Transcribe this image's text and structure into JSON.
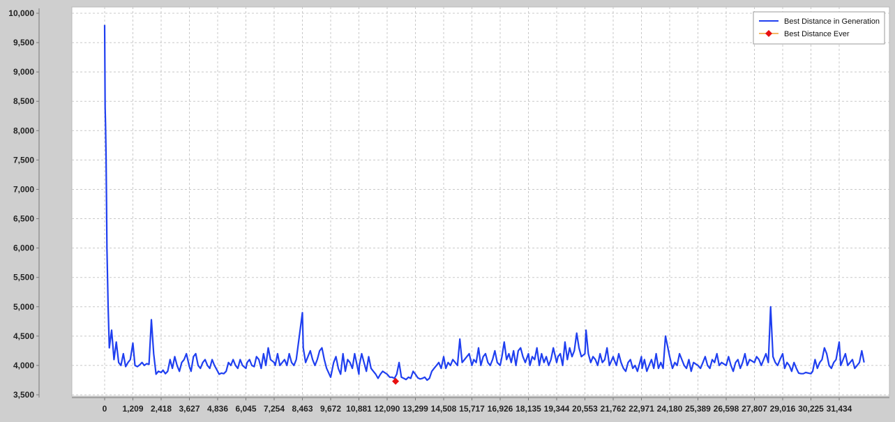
{
  "chart_data": {
    "type": "line",
    "title": "",
    "xlabel": "",
    "ylabel": "",
    "xlim": [
      -450,
      32800
    ],
    "ylim": [
      3500,
      10000
    ],
    "yticks": [
      3500,
      4000,
      4500,
      5000,
      5500,
      6000,
      6500,
      7000,
      7500,
      8000,
      8500,
      9000,
      9500,
      10000
    ],
    "ytick_labels": [
      "3,500",
      "4,000",
      "4,500",
      "5,000",
      "5,500",
      "6,000",
      "6,500",
      "7,000",
      "7,500",
      "8,000",
      "8,500",
      "9,000",
      "9,500",
      "10,000"
    ],
    "xticks": [
      0,
      1209,
      2418,
      3627,
      4836,
      6045,
      7254,
      8463,
      9672,
      10881,
      12090,
      13299,
      14508,
      15717,
      16926,
      18135,
      19344,
      20553,
      21762,
      22971,
      24180,
      25389,
      26598,
      27807,
      29016,
      30225,
      31434
    ],
    "xtick_labels": [
      "0",
      "1,209",
      "2,418",
      "3,627",
      "4,836",
      "6,045",
      "7,254",
      "8,463",
      "9,672",
      "10,881",
      "12,090",
      "13,299",
      "14,508",
      "15,717",
      "16,926",
      "18,135",
      "19,344",
      "20,553",
      "21,762",
      "22,971",
      "24,180",
      "25,389",
      "26,598",
      "27,807",
      "29,016",
      "30,225",
      "31,434"
    ],
    "grid": true,
    "legend_position": "top-right",
    "series": [
      {
        "name": "Best Distance in Generation",
        "color": "#1f3ff0",
        "marker": "none",
        "x": [
          0,
          20,
          40,
          60,
          80,
          100,
          150,
          200,
          300,
          400,
          500,
          600,
          700,
          800,
          900,
          1000,
          1100,
          1209,
          1300,
          1400,
          1500,
          1600,
          1700,
          1800,
          1900,
          2000,
          2100,
          2200,
          2300,
          2418,
          2500,
          2600,
          2700,
          2800,
          2900,
          3000,
          3100,
          3200,
          3300,
          3400,
          3500,
          3627,
          3700,
          3800,
          3900,
          4000,
          4100,
          4200,
          4300,
          4400,
          4500,
          4600,
          4700,
          4836,
          4900,
          5000,
          5100,
          5200,
          5300,
          5400,
          5500,
          5600,
          5700,
          5800,
          5900,
          6045,
          6100,
          6200,
          6300,
          6400,
          6500,
          6600,
          6700,
          6800,
          6900,
          7000,
          7100,
          7254,
          7300,
          7400,
          7500,
          7600,
          7700,
          7800,
          7900,
          8000,
          8100,
          8200,
          8300,
          8463,
          8500,
          8600,
          8700,
          8800,
          8900,
          9000,
          9100,
          9200,
          9300,
          9400,
          9500,
          9672,
          9700,
          9800,
          9900,
          10000,
          10100,
          10200,
          10300,
          10400,
          10500,
          10600,
          10700,
          10881,
          10900,
          11000,
          11100,
          11200,
          11300,
          11400,
          11500,
          11600,
          11700,
          11800,
          11900,
          12090,
          12200,
          12300,
          12400,
          12500,
          12600,
          12700,
          12800,
          12900,
          13000,
          13100,
          13200,
          13299,
          13400,
          13500,
          13600,
          13700,
          13800,
          13900,
          14000,
          14100,
          14200,
          14300,
          14400,
          14508,
          14600,
          14700,
          14800,
          14900,
          15000,
          15100,
          15200,
          15300,
          15400,
          15500,
          15600,
          15717,
          15800,
          15900,
          16000,
          16100,
          16200,
          16300,
          16400,
          16500,
          16600,
          16700,
          16800,
          16926,
          17000,
          17100,
          17200,
          17300,
          17400,
          17500,
          17600,
          17700,
          17800,
          17900,
          18000,
          18135,
          18200,
          18300,
          18400,
          18500,
          18600,
          18700,
          18800,
          18900,
          19000,
          19100,
          19200,
          19344,
          19400,
          19500,
          19600,
          19700,
          19800,
          19900,
          20000,
          20100,
          20200,
          20300,
          20400,
          20553,
          20600,
          20700,
          20800,
          20900,
          21000,
          21100,
          21200,
          21300,
          21400,
          21500,
          21600,
          21762,
          21800,
          21900,
          22000,
          22100,
          22200,
          22300,
          22400,
          22500,
          22600,
          22700,
          22800,
          22971,
          23000,
          23100,
          23200,
          23300,
          23400,
          23500,
          23600,
          23700,
          23800,
          23900,
          24000,
          24180,
          24300,
          24400,
          24500,
          24600,
          24700,
          24800,
          24900,
          25000,
          25100,
          25200,
          25389,
          25500,
          25600,
          25700,
          25800,
          25900,
          26000,
          26100,
          26200,
          26300,
          26400,
          26598,
          26700,
          26800,
          26900,
          27000,
          27100,
          27200,
          27300,
          27400,
          27500,
          27600,
          27807,
          27900,
          28000,
          28100,
          28200,
          28300,
          28400,
          28500,
          28600,
          28700,
          28800,
          28900,
          29016,
          29100,
          29200,
          29300,
          29400,
          29500,
          29600,
          29700,
          29800,
          29900,
          30000,
          30225,
          30300,
          30400,
          30500,
          30600,
          30700,
          30800,
          30900,
          31000,
          31100,
          31200,
          31300,
          31434,
          31500,
          31600,
          31700,
          31800,
          31900,
          32000,
          32100,
          32200,
          32300,
          32400,
          32500
        ],
        "y": [
          9800,
          8400,
          8100,
          7600,
          6800,
          6000,
          5000,
          4300,
          4600,
          4100,
          4400,
          4050,
          4000,
          4200,
          3980,
          4050,
          4100,
          4380,
          4000,
          3980,
          4010,
          4050,
          4000,
          4030,
          4020,
          4780,
          4200,
          3850,
          3900,
          3880,
          3920,
          3860,
          3900,
          4100,
          3950,
          4150,
          4000,
          3900,
          4050,
          4100,
          4200,
          3980,
          3900,
          4150,
          4200,
          4000,
          3950,
          4050,
          4100,
          4000,
          3950,
          4100,
          4000,
          3900,
          3850,
          3870,
          3860,
          3900,
          4050,
          4000,
          4100,
          4000,
          3950,
          4100,
          4000,
          3950,
          4050,
          4100,
          4000,
          3980,
          4150,
          4100,
          3950,
          4200,
          4000,
          4300,
          4100,
          4050,
          4000,
          4200,
          4000,
          4050,
          4100,
          4000,
          4200,
          4050,
          4000,
          4100,
          4400,
          4900,
          4300,
          4050,
          4150,
          4250,
          4100,
          4000,
          4100,
          4250,
          4300,
          4100,
          3950,
          3800,
          3850,
          4050,
          4150,
          3950,
          3850,
          4200,
          3900,
          4100,
          4050,
          3950,
          4200,
          3850,
          4000,
          4200,
          4050,
          3900,
          4150,
          3950,
          3900,
          3850,
          3780,
          3850,
          3900,
          3850,
          3800,
          3800,
          3780,
          3850,
          4050,
          3800,
          3780,
          3760,
          3800,
          3780,
          3900,
          3850,
          3790,
          3770,
          3780,
          3800,
          3750,
          3780,
          3900,
          3950,
          4000,
          4050,
          3950,
          4150,
          3950,
          4050,
          4000,
          4100,
          4050,
          4000,
          4450,
          4050,
          4100,
          4150,
          4200,
          4000,
          4100,
          4050,
          4300,
          4000,
          4150,
          4200,
          4050,
          4000,
          4100,
          4250,
          4050,
          4000,
          4150,
          4400,
          4100,
          4200,
          4050,
          4250,
          4000,
          4250,
          4300,
          4150,
          4050,
          4200,
          4000,
          4150,
          4100,
          4300,
          4000,
          4200,
          4050,
          4150,
          4000,
          4100,
          4300,
          4050,
          4150,
          4200,
          4000,
          4400,
          4100,
          4300,
          4150,
          4250,
          4550,
          4300,
          4150,
          4200,
          4600,
          4200,
          4050,
          4150,
          4100,
          4000,
          4200,
          4050,
          4100,
          4300,
          4000,
          4150,
          4100,
          4000,
          4200,
          4050,
          3950,
          3900,
          4050,
          4100,
          3950,
          4000,
          3900,
          4150,
          3950,
          4100,
          3900,
          4000,
          4100,
          3950,
          4200,
          3950,
          4050,
          3950,
          4500,
          4150,
          3950,
          4050,
          4000,
          4200,
          4100,
          4000,
          3950,
          4100,
          3900,
          4050,
          4000,
          3950,
          4050,
          4150,
          4000,
          3950,
          4100,
          4050,
          4200,
          4000,
          4050,
          4000,
          4150,
          4000,
          3900,
          4050,
          4100,
          3950,
          4050,
          4200,
          4000,
          4100,
          4050,
          4150,
          4100,
          4000,
          4100,
          4200,
          4050,
          5000,
          4150,
          4050,
          4000,
          4100,
          4200,
          3950,
          4050,
          4000,
          3900,
          4050,
          3950,
          3870,
          3860,
          3860,
          3880,
          3860,
          3900,
          4100,
          3950,
          4050,
          4100,
          4300,
          4200,
          4000,
          3950,
          4050,
          4100,
          4400,
          4000,
          4100,
          4200,
          4000,
          4050,
          4100,
          3950,
          4000,
          4050,
          4250,
          4050
        ]
      },
      {
        "name": "Best Distance Ever",
        "color": "#f0a030",
        "marker": "diamond",
        "marker_color": "#e81010",
        "x": [
          12450
        ],
        "y": [
          3730
        ]
      }
    ]
  }
}
